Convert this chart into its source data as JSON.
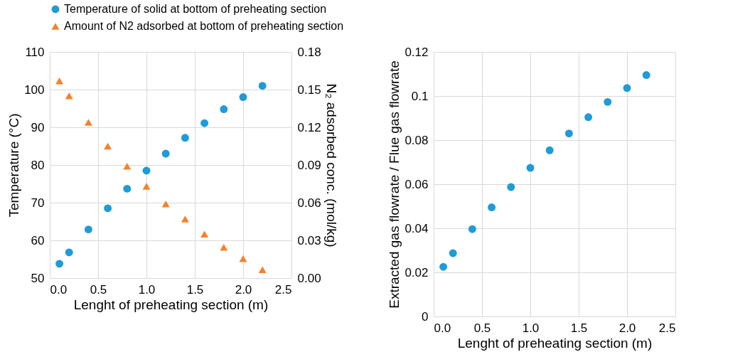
{
  "chart_data": [
    {
      "type": "scatter",
      "xlabel": "Lenght of preheating section (m)",
      "ylabel": "Temperature (°C)",
      "y2label": "N₂ adsorbed conc. (mol/kg)",
      "x": [
        0.1,
        0.2,
        0.4,
        0.6,
        0.8,
        1.0,
        1.2,
        1.4,
        1.6,
        1.8,
        2.0,
        2.2
      ],
      "series": [
        {
          "name": "Temperature of solid at bottom of preheating section",
          "color": "#1f9bd7",
          "marker": "circle",
          "values": [
            53.8,
            56.8,
            62.9,
            68.5,
            73.7,
            78.5,
            83.0,
            87.2,
            91.1,
            94.8,
            98.0,
            101.0
          ]
        },
        {
          "name": "Amount of N2 adsorbed at bottom of preheating section",
          "color": "#f7812a",
          "marker": "triangle",
          "axis": "y2",
          "values": [
            0.157,
            0.145,
            0.124,
            0.105,
            0.089,
            0.073,
            0.059,
            0.047,
            0.035,
            0.0245,
            0.0154,
            0.0066
          ]
        }
      ],
      "xlim": [
        0,
        2.5
      ],
      "xticks": [
        {
          "value": 0,
          "label": "0.0"
        },
        0.5,
        {
          "value": 1,
          "label": "1.0"
        },
        1.5,
        {
          "value": 2,
          "label": "2.0"
        },
        2.5
      ],
      "ylim": [
        50,
        110
      ],
      "yticks": [
        50,
        60,
        70,
        80,
        90,
        100,
        110
      ],
      "y2lim": [
        0,
        0.18
      ],
      "y2ticks": [
        {
          "value": 0,
          "label": "0.00"
        },
        0.03,
        0.06,
        0.09,
        0.12,
        0.15,
        0.18
      ],
      "grid": true,
      "legend": "top"
    },
    {
      "type": "scatter",
      "xlabel": "Lenght of preheating section (m)",
      "ylabel": "Extracted gas  flowrate / Flue gas flowrate",
      "x": [
        0.1,
        0.2,
        0.4,
        0.6,
        0.8,
        1.0,
        1.2,
        1.4,
        1.6,
        1.8,
        2.0,
        2.2
      ],
      "series": [
        {
          "color": "#1f9bd7",
          "marker": "circle",
          "values": [
            0.0225,
            0.0287,
            0.0396,
            0.0495,
            0.0587,
            0.0674,
            0.0754,
            0.083,
            0.0904,
            0.0973,
            0.1036,
            0.1095
          ]
        }
      ],
      "xlim": [
        0,
        2.5
      ],
      "xticks": [
        {
          "value": 0,
          "label": "0.0"
        },
        0.5,
        {
          "value": 1,
          "label": "1.0"
        },
        1.5,
        {
          "value": 2,
          "label": "2.0"
        },
        2.5
      ],
      "ylim": [
        0,
        0.12
      ],
      "yticks": [
        0,
        0.02,
        0.04,
        0.06,
        0.08,
        0.1,
        0.12
      ],
      "grid": true,
      "legend": false
    }
  ]
}
